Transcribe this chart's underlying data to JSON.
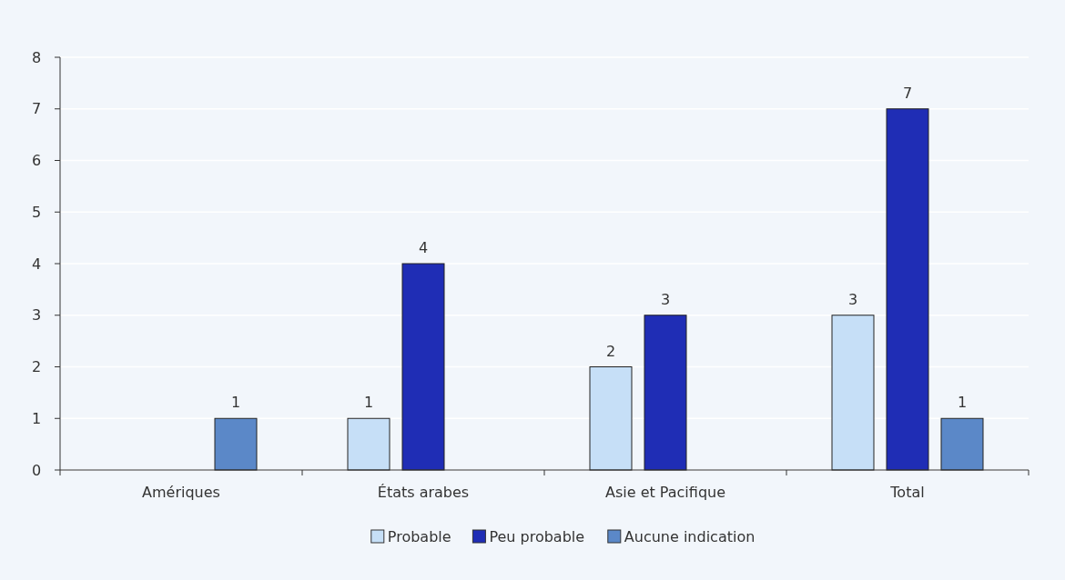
{
  "chart_data": {
    "type": "bar",
    "categories": [
      "Amériques",
      "États arabes",
      "Asie et Pacifique",
      "Total"
    ],
    "series": [
      {
        "name": "Probable",
        "color": "#c6dff7",
        "values": [
          null,
          1,
          2,
          3
        ]
      },
      {
        "name": "Peu probable",
        "color": "#1f2db5",
        "values": [
          null,
          4,
          3,
          7
        ]
      },
      {
        "name": "Aucune indication",
        "color": "#5b88c8",
        "values": [
          1,
          null,
          null,
          1
        ]
      }
    ],
    "ylim": [
      0,
      8
    ],
    "yticks": [
      0,
      1,
      2,
      3,
      4,
      5,
      6,
      7,
      8
    ],
    "grid": "y",
    "data_labels": true,
    "legend": "bottom"
  }
}
